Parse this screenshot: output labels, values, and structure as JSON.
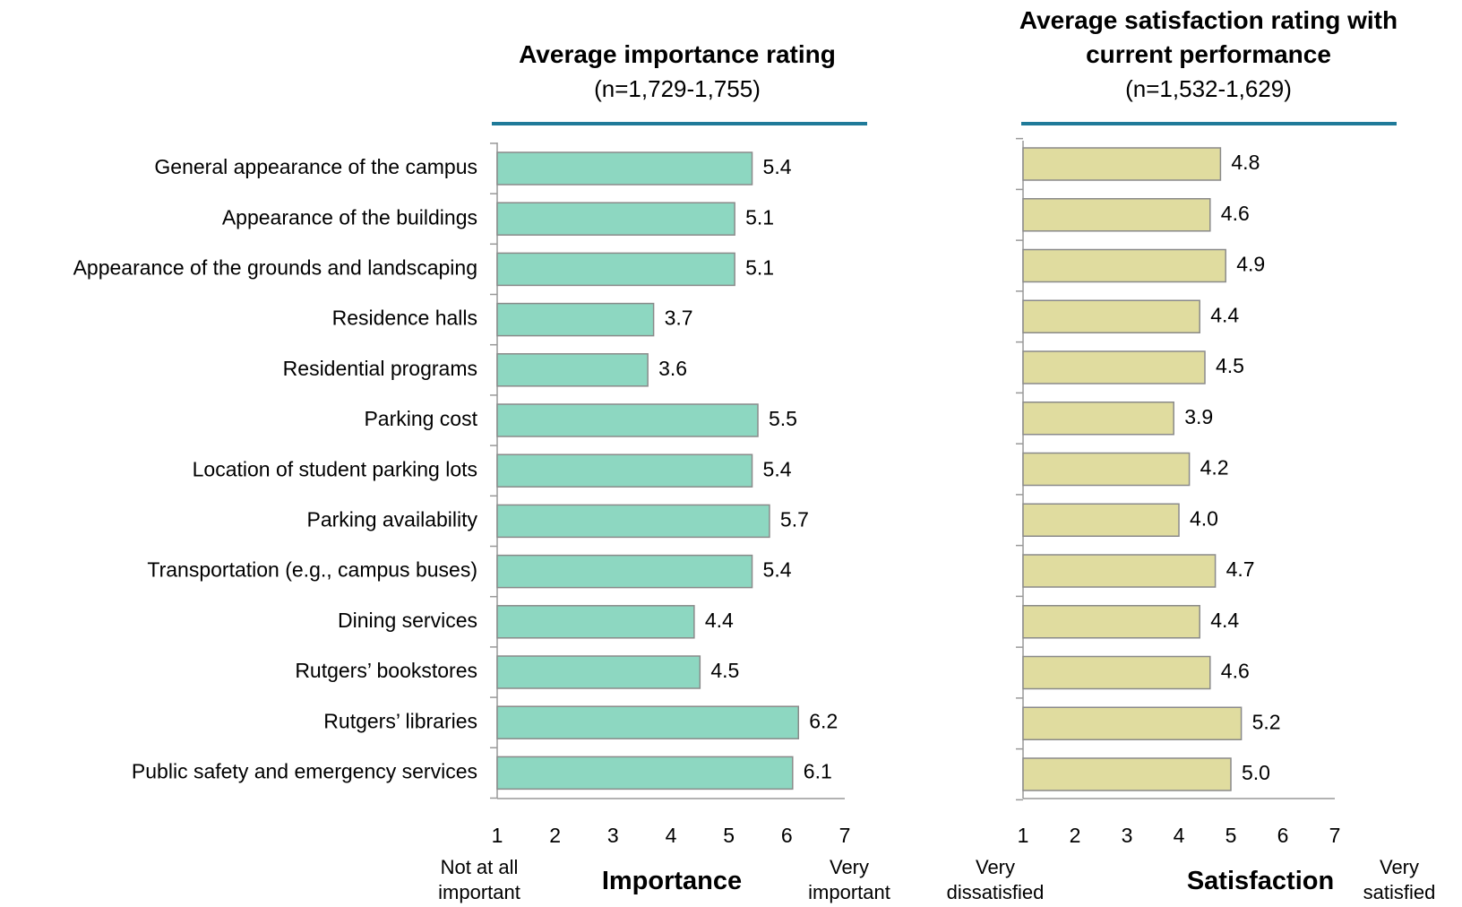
{
  "chart_data": [
    {
      "type": "bar",
      "orientation": "horizontal",
      "title": "Average importance rating",
      "subtitle": "(n=1,729-1,755)",
      "categories": [
        "General appearance of the campus",
        "Appearance of the buildings",
        "Appearance of the grounds and landscaping",
        "Residence halls",
        "Residential programs",
        "Parking cost",
        "Location of student parking lots",
        "Parking availability",
        "Transportation (e.g., campus buses)",
        "Dining services",
        "Rutgers’ bookstores",
        "Rutgers’ libraries",
        "Public safety and emergency services"
      ],
      "values": [
        5.4,
        5.1,
        5.1,
        3.7,
        3.6,
        5.5,
        5.4,
        5.7,
        5.4,
        4.4,
        4.5,
        6.2,
        6.1
      ],
      "color": "#8dd7c1",
      "xlim": [
        1,
        7
      ],
      "xticks": [
        1,
        2,
        3,
        4,
        5,
        6,
        7
      ],
      "xlabel": "Importance",
      "low_label": "Not at all important",
      "high_label": "Very important"
    },
    {
      "type": "bar",
      "orientation": "horizontal",
      "title": "Average satisfaction rating with current performance",
      "subtitle": "(n=1,532-1,629)",
      "values": [
        4.8,
        4.6,
        4.9,
        4.4,
        4.5,
        3.9,
        4.2,
        4.0,
        4.7,
        4.4,
        4.6,
        5.2,
        5.0
      ],
      "value_labels": [
        "4.8",
        "4.6",
        "4.9",
        "4.4",
        "4.5",
        "3.9",
        "4.2",
        "4.0",
        "4.7",
        "4.4",
        "4.6",
        "5.2",
        "5.0"
      ],
      "color": "#e0dc9f",
      "xlim": [
        1,
        7
      ],
      "xticks": [
        1,
        2,
        3,
        4,
        5,
        6,
        7
      ],
      "xlabel": "Satisfaction",
      "low_label": "Very dissatisfied",
      "high_label": "Very satisfied"
    }
  ]
}
